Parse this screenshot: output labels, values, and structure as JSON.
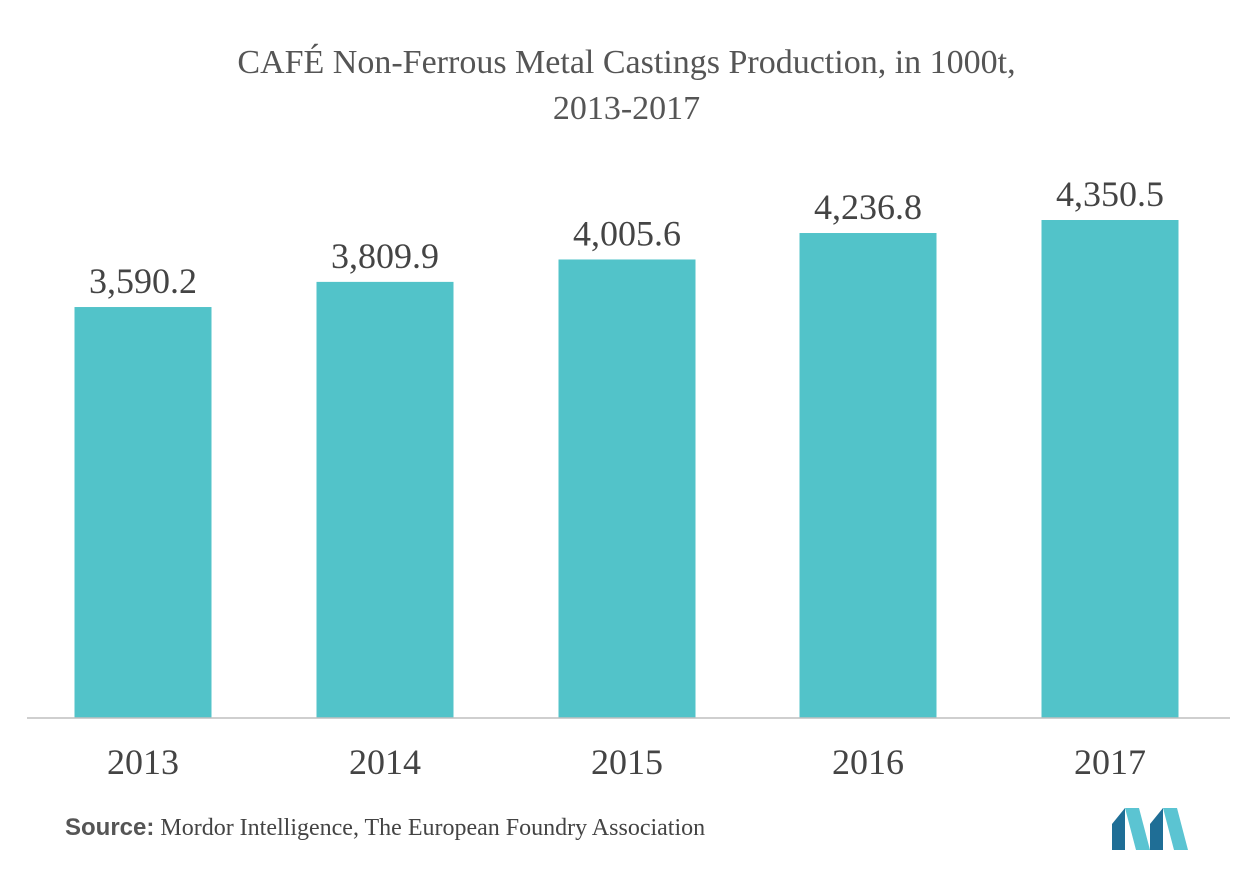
{
  "title_line1": "CAFÉ Non-Ferrous Metal Castings Production, in 1000t,",
  "title_line2": "2013-2017",
  "source": {
    "label": "Source:",
    "text": "Mordor Intelligence, The European Foundry Association"
  },
  "colors": {
    "bar": "#52C3C9",
    "axis": "#BFBFBF",
    "label": "#444444",
    "logo_dark": "#1F6E96",
    "logo_light": "#5BC4D2"
  },
  "icons": {
    "logo": "mordor-intelligence-logo"
  },
  "chart_data": {
    "type": "bar",
    "title": "CAFÉ Non-Ferrous Metal Castings Production, in 1000t, 2013-2017",
    "categories": [
      "2013",
      "2014",
      "2015",
      "2016",
      "2017"
    ],
    "values": [
      3590.2,
      3809.9,
      4005.6,
      4236.8,
      4350.5
    ],
    "value_labels": [
      "3,590.2",
      "3,809.9",
      "4,005.6",
      "4,236.8",
      "4,350.5"
    ],
    "xlabel": "",
    "ylabel": "",
    "ylim": [
      0,
      4350.5
    ],
    "grid": false,
    "legend": "none"
  }
}
